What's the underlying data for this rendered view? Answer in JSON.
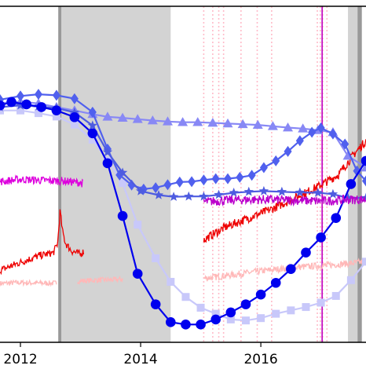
{
  "chart_data": {
    "type": "line",
    "title": "",
    "xlabel": "",
    "ylabel": "",
    "xlim": [
      2011.66,
      2017.75
    ],
    "ylim": [
      0,
      1
    ],
    "x_ticks": [
      {
        "value": 2012,
        "label": "2012"
      },
      {
        "value": 2014,
        "label": "2014"
      },
      {
        "value": 2016,
        "label": "2016"
      }
    ],
    "grid": false,
    "legend": "none",
    "shaded_periods": [
      {
        "start": 2012.63,
        "end": 2014.5,
        "color": "#d3d3d3"
      },
      {
        "start": 2017.45,
        "end": 2017.68,
        "color": "#d3d3d3"
      }
    ],
    "dark_period_edges": [
      {
        "start": 2012.63,
        "end": 2012.68,
        "color": "#999999"
      },
      {
        "start": 2017.61,
        "end": 2017.68,
        "color": "#999999"
      }
    ],
    "pink_event_lines": [
      2015.05,
      2015.2,
      2015.3,
      2015.38,
      2015.67,
      2015.94,
      2016.18,
      2016.94,
      2016.99,
      2017.03,
      2017.1
    ],
    "magenta_event_line": 2017.02,
    "series": [
      {
        "marker": "circle",
        "color": "#0000ee",
        "x": [
          2011.66,
          2011.85,
          2012.1,
          2012.35,
          2012.6,
          2012.9,
          2013.2,
          2013.45,
          2013.7,
          2013.95,
          2014.25,
          2014.5,
          2014.75,
          2015.0,
          2015.25,
          2015.5,
          2015.75,
          2016.0,
          2016.25,
          2016.5,
          2016.75,
          2017.0,
          2017.25,
          2017.5,
          2017.75
        ],
        "y": [
          0.705,
          0.715,
          0.708,
          0.7,
          0.69,
          0.67,
          0.622,
          0.533,
          0.376,
          0.204,
          0.113,
          0.06,
          0.053,
          0.053,
          0.068,
          0.089,
          0.113,
          0.142,
          0.177,
          0.218,
          0.267,
          0.312,
          0.37,
          0.471,
          0.54
        ]
      },
      {
        "marker": "diamond",
        "color": "#5060ee",
        "x": [
          2011.66,
          2012.0,
          2012.3,
          2012.6,
          2012.9,
          2013.2,
          2013.45,
          2013.65,
          2013.85,
          2014.05,
          2014.25,
          2014.45,
          2014.65,
          2014.85,
          2015.05,
          2015.25,
          2015.45,
          2015.65,
          2015.85,
          2016.05,
          2016.25,
          2016.45,
          2016.65,
          2016.85,
          2017.0,
          2017.2,
          2017.4,
          2017.6,
          2017.75
        ],
        "y": [
          0.722,
          0.733,
          0.738,
          0.735,
          0.725,
          0.685,
          0.575,
          0.498,
          0.468,
          0.456,
          0.46,
          0.469,
          0.477,
          0.478,
          0.483,
          0.487,
          0.487,
          0.491,
          0.497,
          0.52,
          0.54,
          0.568,
          0.6,
          0.625,
          0.638,
          0.62,
          0.59,
          0.51,
          0.48
        ]
      },
      {
        "marker": "triangle",
        "color": "#8888f5",
        "x": [
          2011.66,
          2012.0,
          2012.3,
          2012.6,
          2012.9,
          2013.2,
          2013.45,
          2013.7,
          2013.95,
          2014.2,
          2014.45,
          2014.7,
          2014.95,
          2015.2,
          2015.45,
          2015.7,
          2015.95,
          2016.2,
          2016.45,
          2016.7,
          2016.95,
          2017.2,
          2017.45,
          2017.75
        ],
        "y": [
          0.712,
          0.716,
          0.711,
          0.7,
          0.69,
          0.679,
          0.671,
          0.668,
          0.664,
          0.66,
          0.657,
          0.655,
          0.655,
          0.653,
          0.651,
          0.649,
          0.647,
          0.643,
          0.639,
          0.636,
          0.631,
          0.625,
          0.555,
          0.52
        ]
      },
      {
        "marker": "star",
        "color": "#4e5ce0",
        "x": [
          2011.66,
          2012.0,
          2012.3,
          2012.6,
          2012.9,
          2013.2,
          2013.45,
          2013.7,
          2014.0,
          2014.3,
          2014.55,
          2014.8,
          2015.05,
          2015.3,
          2015.55,
          2015.8,
          2016.05,
          2016.35,
          2016.65,
          2016.95,
          2017.2,
          2017.45,
          2017.75
        ],
        "y": [
          0.7,
          0.705,
          0.702,
          0.697,
          0.684,
          0.645,
          0.566,
          0.505,
          0.45,
          0.438,
          0.433,
          0.434,
          0.434,
          0.439,
          0.445,
          0.448,
          0.45,
          0.448,
          0.446,
          0.445,
          0.441,
          0.43,
          0.43
        ]
      },
      {
        "marker": "square",
        "color": "#c8c8fa",
        "x": [
          2011.66,
          2012.0,
          2012.3,
          2012.6,
          2012.9,
          2013.2,
          2013.45,
          2013.7,
          2013.95,
          2014.25,
          2014.5,
          2014.75,
          2015.0,
          2015.25,
          2015.5,
          2015.75,
          2016.0,
          2016.25,
          2016.5,
          2016.75,
          2017.0,
          2017.25,
          2017.5,
          2017.75
        ],
        "y": [
          0.69,
          0.69,
          0.682,
          0.672,
          0.648,
          0.603,
          0.541,
          0.474,
          0.35,
          0.25,
          0.18,
          0.135,
          0.103,
          0.085,
          0.068,
          0.065,
          0.072,
          0.085,
          0.095,
          0.105,
          0.118,
          0.138,
          0.185,
          0.24
        ]
      },
      {
        "marker": "noisy",
        "color": "#dd00dd",
        "noise": 0.012,
        "x": [
          2011.66,
          2012.0,
          2012.35,
          2012.7,
          2013.0,
          2013.04
        ],
        "y": [
          0.478,
          0.485,
          0.482,
          0.48,
          0.475,
          0.472
        ]
      },
      {
        "marker": "noisy",
        "color": "#bb00cc",
        "noise": 0.014,
        "x": [
          2015.05,
          2015.5,
          2016.0,
          2016.5,
          2017.0,
          2017.5,
          2017.75
        ],
        "y": [
          0.418,
          0.423,
          0.425,
          0.423,
          0.42,
          0.425,
          0.425
        ]
      },
      {
        "marker": "noisy",
        "color": "#ee0000",
        "noise": 0.011,
        "x": [
          2011.66,
          2012.0,
          2012.3,
          2012.55,
          2012.62,
          2012.66,
          2012.7,
          2012.75,
          2012.85,
          2013.0,
          2013.05
        ],
        "y": [
          0.214,
          0.238,
          0.257,
          0.267,
          0.295,
          0.392,
          0.33,
          0.295,
          0.272,
          0.262,
          0.27
        ]
      },
      {
        "marker": "noisy",
        "color": "#ee0000",
        "noise": 0.013,
        "x": [
          2015.05,
          2015.4,
          2015.8,
          2016.2,
          2016.6,
          2017.0,
          2017.3,
          2017.55,
          2017.75
        ],
        "y": [
          0.305,
          0.342,
          0.37,
          0.398,
          0.432,
          0.468,
          0.5,
          0.56,
          0.6
        ]
      },
      {
        "marker": "noisy",
        "color": "#ffb8b8",
        "noise": 0.008,
        "x": [
          2011.66,
          2012.0,
          2012.3,
          2012.6
        ],
        "y": [
          0.175,
          0.178,
          0.176,
          0.176
        ]
      },
      {
        "marker": "noisy",
        "color": "#ffb8b8",
        "noise": 0.008,
        "x": [
          2012.95,
          2013.25,
          2013.55,
          2013.7
        ],
        "y": [
          0.182,
          0.185,
          0.186,
          0.188
        ]
      },
      {
        "marker": "noisy",
        "color": "#ffb8b8",
        "noise": 0.01,
        "x": [
          2015.05,
          2015.5,
          2016.0,
          2016.5,
          2017.0,
          2017.5,
          2017.75
        ],
        "y": [
          0.19,
          0.2,
          0.212,
          0.222,
          0.228,
          0.235,
          0.24
        ]
      }
    ]
  }
}
